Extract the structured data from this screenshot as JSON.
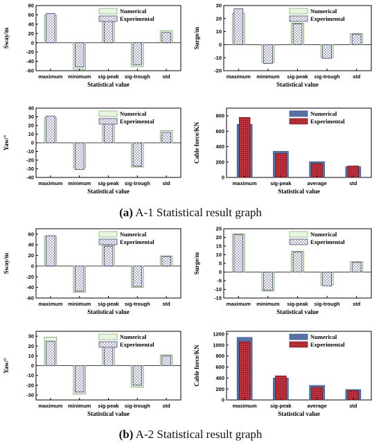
{
  "captions": {
    "a": {
      "label": "(a)",
      "text": " A-1 Statistical result graph"
    },
    "b": {
      "label": "(b)",
      "text": " A-2 Statistical result graph"
    }
  },
  "colors": {
    "numerical_fill": "#e8f5e0",
    "numerical_stroke": "#7da56b",
    "experimental_fill": "#ffffff",
    "experimental_dot": "#3a3a8c",
    "cable_numerical": "#5872a8",
    "cable_experimental": "#c0303a"
  },
  "chart_data": [
    {
      "id": "a1-sway",
      "style": "outline",
      "type": "bar",
      "categories": [
        "maximum",
        "minimum",
        "sig-peak",
        "sig-trough",
        "std"
      ],
      "series": [
        {
          "name": "Numerical",
          "values": [
            59,
            -57,
            53,
            -51,
            26
          ]
        },
        {
          "name": "Experimental",
          "values": [
            63,
            -52,
            49,
            -47,
            22
          ]
        }
      ],
      "xlabel": "Statistical value",
      "ylabel": "Sway/m",
      "ylim": [
        -60,
        80
      ],
      "yticks": [
        -60,
        -40,
        -20,
        0,
        20,
        40,
        60,
        80
      ],
      "legend": "top-right"
    },
    {
      "id": "a1-surge",
      "style": "outline",
      "type": "bar",
      "categories": [
        "maximum",
        "minimum",
        "sig-peak",
        "sig-trough",
        "std"
      ],
      "series": [
        {
          "name": "Numerical",
          "values": [
            24,
            -13.5,
            16.5,
            -10,
            8.5
          ]
        },
        {
          "name": "Experimental",
          "values": [
            27.5,
            -14.5,
            16,
            -10.5,
            8
          ]
        }
      ],
      "xlabel": "Statistical value",
      "ylabel": "Surge/m",
      "ylim": [
        -20,
        30
      ],
      "yticks": [
        -20,
        -10,
        0,
        10,
        20,
        30
      ],
      "legend": "top-right"
    },
    {
      "id": "a1-yaw",
      "style": "outline",
      "type": "bar",
      "categories": [
        "maximum",
        "minimum",
        "sig-peak",
        "sig-trough",
        "std"
      ],
      "series": [
        {
          "name": "Numerical",
          "values": [
            29,
            -29,
            27,
            -28,
            14
          ]
        },
        {
          "name": "Experimental",
          "values": [
            31,
            -31,
            25,
            -27,
            12
          ]
        }
      ],
      "xlabel": "Statistical value",
      "ylabel": "Yaw/°",
      "ylim": [
        -40,
        40
      ],
      "yticks": [
        -40,
        -30,
        -20,
        -10,
        0,
        10,
        20,
        30,
        40
      ],
      "legend": "top-right"
    },
    {
      "id": "a1-cable",
      "style": "solid",
      "type": "bar",
      "categories": [
        "maximum",
        "sig-peak",
        "average",
        "std"
      ],
      "series": [
        {
          "name": "Numerical",
          "values": [
            690,
            340,
            205,
            140
          ]
        },
        {
          "name": "Experimental",
          "values": [
            780,
            310,
            180,
            150
          ]
        }
      ],
      "xlabel": "Statistical value",
      "ylabel": "Cable force/KN",
      "ylim": [
        0,
        900
      ],
      "yticks": [
        0,
        200,
        400,
        600,
        800
      ],
      "legend": "top-right"
    },
    {
      "id": "a2-sway",
      "style": "outline",
      "type": "bar",
      "categories": [
        "maximum",
        "minimum",
        "sig-peak",
        "sig-trough",
        "std"
      ],
      "series": [
        {
          "name": "Numerical",
          "values": [
            56,
            -49,
            39,
            -40,
            19
          ]
        },
        {
          "name": "Experimental",
          "values": [
            57,
            -47,
            37,
            -38,
            18
          ]
        }
      ],
      "xlabel": "Statistical value",
      "ylabel": "Sway/m",
      "ylim": [
        -60,
        70
      ],
      "yticks": [
        -60,
        -40,
        -20,
        0,
        20,
        40,
        60
      ],
      "legend": "top-right"
    },
    {
      "id": "a2-surge",
      "style": "outline",
      "type": "bar",
      "categories": [
        "maximum",
        "minimum",
        "sig-peak",
        "sig-trough",
        "std"
      ],
      "series": [
        {
          "name": "Numerical",
          "values": [
            22,
            -11,
            12,
            -7.5,
            6
          ]
        },
        {
          "name": "Experimental",
          "values": [
            21.5,
            -10.5,
            11.5,
            -8,
            5.5
          ]
        }
      ],
      "xlabel": "Statistical value",
      "ylabel": "Surge/m",
      "ylim": [
        -15,
        25
      ],
      "yticks": [
        -15,
        -10,
        -5,
        0,
        5,
        10,
        15,
        20,
        25
      ],
      "legend": "top-right"
    },
    {
      "id": "a2-yaw",
      "style": "outline",
      "type": "bar",
      "categories": [
        "maximum",
        "minimum",
        "sig-peak",
        "sig-trough",
        "std"
      ],
      "series": [
        {
          "name": "Numerical",
          "values": [
            29,
            -29,
            22,
            -22,
            11
          ]
        },
        {
          "name": "Experimental",
          "values": [
            25,
            -27,
            20,
            -20,
            10
          ]
        }
      ],
      "xlabel": "Statistical value",
      "ylabel": "Yaw/°",
      "ylim": [
        -35,
        35
      ],
      "yticks": [
        -30,
        -20,
        -10,
        0,
        10,
        20,
        30
      ],
      "legend": "top-right"
    },
    {
      "id": "a2-cable",
      "style": "solid",
      "type": "bar",
      "categories": [
        "maximum",
        "sig-peak",
        "average",
        "std"
      ],
      "series": [
        {
          "name": "Numerical",
          "values": [
            1140,
            400,
            265,
            190
          ]
        },
        {
          "name": "Experimental",
          "values": [
            1060,
            440,
            230,
            170
          ]
        }
      ],
      "xlabel": "Statistical value",
      "ylabel": "Cable force/KN",
      "ylim": [
        0,
        1250
      ],
      "yticks": [
        0,
        200,
        400,
        600,
        800,
        1000,
        1200
      ],
      "legend": "top-right"
    }
  ]
}
